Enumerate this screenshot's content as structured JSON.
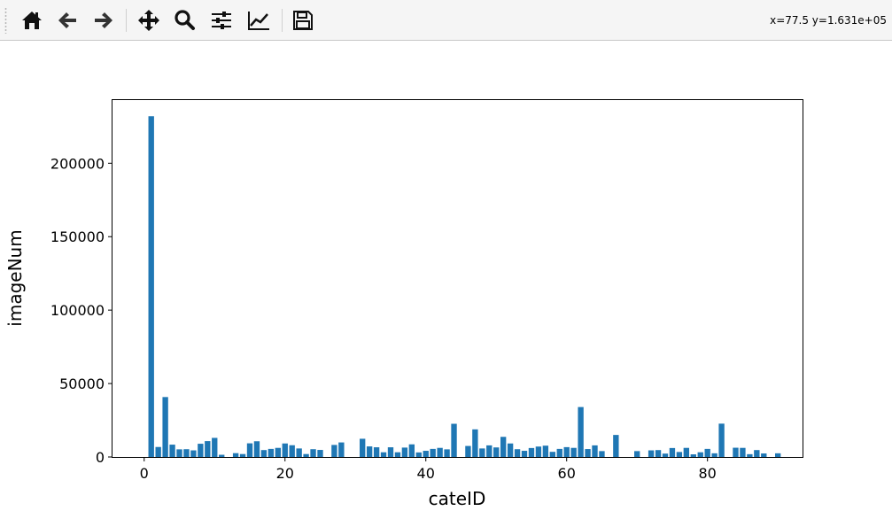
{
  "toolbar": {
    "buttons": [
      {
        "name": "home-button",
        "icon": "home-icon"
      },
      {
        "name": "back-button",
        "icon": "arrow-left-icon"
      },
      {
        "name": "forward-button",
        "icon": "arrow-right-icon"
      },
      {
        "name": "pan-button",
        "icon": "move-icon"
      },
      {
        "name": "zoom-button",
        "icon": "search-icon"
      },
      {
        "name": "configure-subplots-button",
        "icon": "sliders-icon"
      },
      {
        "name": "edit-axis-button",
        "icon": "line-chart-icon"
      },
      {
        "name": "save-button",
        "icon": "floppy-disk-icon"
      }
    ],
    "coords": "x=77.5 y=1.631e+05"
  },
  "chart_data": {
    "type": "bar",
    "title": "",
    "xlabel": "cateID",
    "ylabel": "imageNum",
    "xlim": [
      -4.5,
      93.5
    ],
    "ylim": [
      0,
      243000
    ],
    "xticks": [
      0,
      20,
      40,
      60,
      80
    ],
    "yticks": [
      0,
      50000,
      100000,
      150000,
      200000
    ],
    "grid": false,
    "bar_color": "#1f77b4",
    "x": [
      1,
      2,
      3,
      4,
      5,
      6,
      7,
      8,
      9,
      10,
      11,
      13,
      14,
      15,
      16,
      17,
      18,
      19,
      20,
      21,
      22,
      23,
      24,
      25,
      27,
      28,
      31,
      32,
      33,
      34,
      35,
      36,
      37,
      38,
      39,
      40,
      41,
      42,
      43,
      44,
      46,
      47,
      48,
      49,
      50,
      51,
      52,
      53,
      54,
      55,
      56,
      57,
      58,
      59,
      60,
      61,
      62,
      63,
      64,
      65,
      67,
      70,
      72,
      73,
      74,
      75,
      76,
      77,
      78,
      79,
      80,
      81,
      82,
      84,
      85,
      86,
      87,
      88,
      90
    ],
    "values": [
      232000,
      6800,
      40800,
      8400,
      5200,
      5300,
      4500,
      9000,
      10800,
      13000,
      1500,
      2600,
      2000,
      9300,
      10700,
      4700,
      5500,
      6200,
      9200,
      8000,
      5800,
      2000,
      5300,
      4800,
      8200,
      9900,
      12400,
      7200,
      6600,
      3200,
      6600,
      3200,
      6400,
      8600,
      3100,
      4200,
      5500,
      6200,
      5200,
      22600,
      7500,
      18800,
      5800,
      7900,
      6500,
      13700,
      9200,
      5300,
      4200,
      6100,
      7100,
      7700,
      3500,
      5500,
      6700,
      6200,
      34000,
      5400,
      7900,
      4000,
      15000,
      4000,
      4500,
      4700,
      2300,
      6100,
      3400,
      6200,
      1800,
      3200,
      5500,
      2500,
      22700,
      6300,
      6200,
      1900,
      4700,
      2400,
      2500
    ]
  }
}
